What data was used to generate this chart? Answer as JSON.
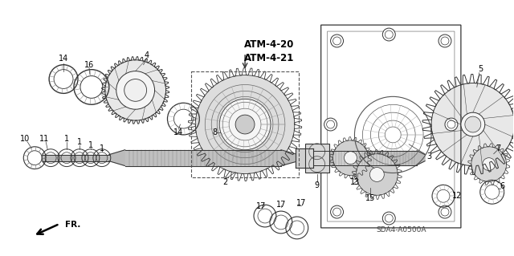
{
  "background_color": "#ffffff",
  "line_color": "#333333",
  "label_color": "#000000",
  "bold_color": "#000000",
  "diagram_ref": "SDA4-A0500A",
  "atm_refs": [
    "ATM-4-20",
    "ATM-4-21"
  ],
  "fr_label": "FR.",
  "figsize": [
    6.4,
    3.19
  ],
  "dpi": 100
}
